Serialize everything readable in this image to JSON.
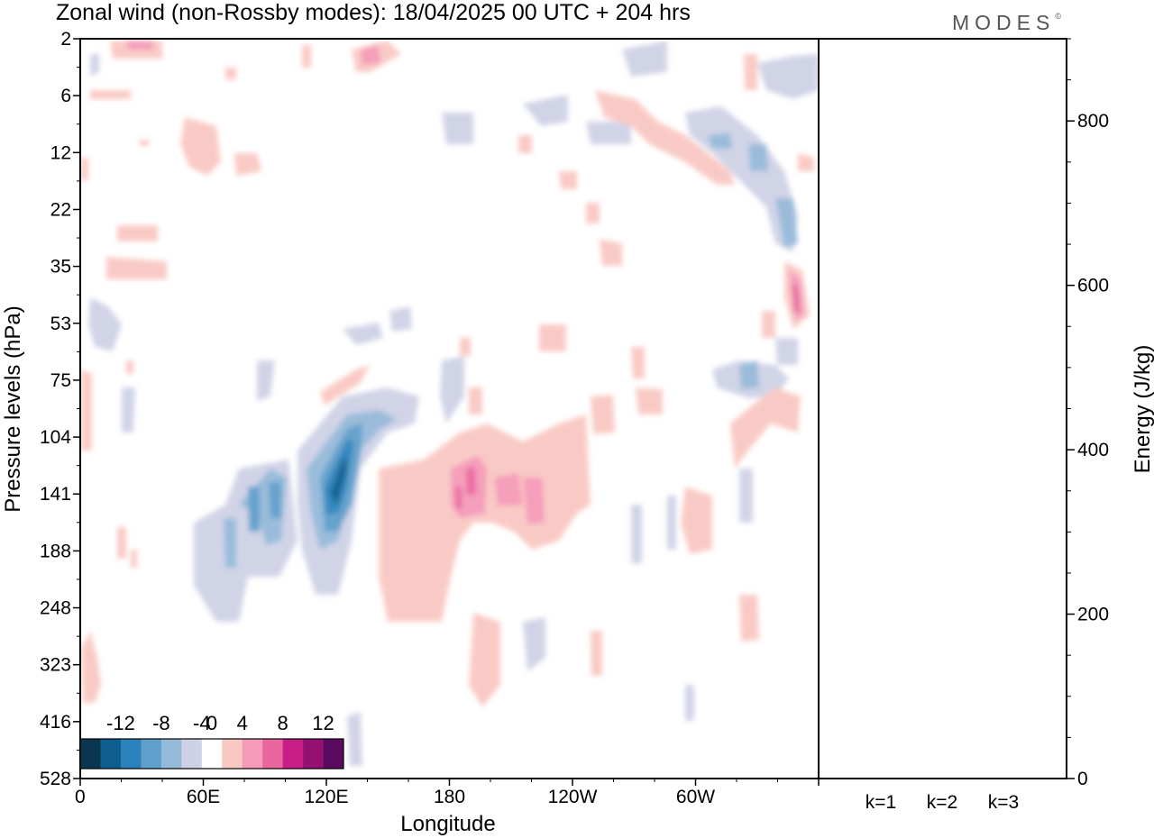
{
  "chart_data": [
    {
      "type": "heatmap",
      "title": "Zonal wind (non-Rossby modes):  18/04/2025  00 UTC  + 204 hrs",
      "xlabel": "Longitude",
      "ylabel": "Pressure levels (hPa)",
      "x_ticks": [
        "0",
        "60E",
        "120E",
        "180",
        "120W",
        "60W"
      ],
      "x_range": [
        0,
        360
      ],
      "y_ticks": [
        "2",
        "6",
        "12",
        "22",
        "35",
        "53",
        "75",
        "104",
        "141",
        "188",
        "248",
        "323",
        "416",
        "528"
      ],
      "y_scale": "pressure levels, top 2 hPa to bottom 528 hPa",
      "colorbar": {
        "tick_labels": [
          "-12",
          "-8",
          "-4",
          "0",
          "4",
          "8",
          "12"
        ],
        "levels": [
          -14,
          -12,
          -10,
          -8,
          -6,
          -4,
          -2,
          2,
          4,
          6,
          8,
          10,
          12,
          14
        ],
        "colors": [
          "#0c3650",
          "#0e5f8f",
          "#2b82bb",
          "#5e9fcb",
          "#95b9d9",
          "#cfd2e6",
          "#ffffff",
          "#f9c8c2",
          "#f59ab8",
          "#e9669f",
          "#c81f87",
          "#960f72",
          "#5b0a62"
        ]
      },
      "regions": [
        {
          "lon": 123,
          "p": 141,
          "value": -12
        },
        {
          "lon": 118,
          "p": 141,
          "value": -8
        },
        {
          "lon": 140,
          "p": 100,
          "value": -4
        },
        {
          "lon": 90,
          "p": 150,
          "value": -4
        },
        {
          "lon": 95,
          "p": 160,
          "value": -2
        },
        {
          "lon": 190,
          "p": 130,
          "value": 6
        },
        {
          "lon": 220,
          "p": 135,
          "value": 4
        },
        {
          "lon": 185,
          "p": 150,
          "value": 3
        },
        {
          "lon": 345,
          "p": 20,
          "value": -4
        },
        {
          "lon": 350,
          "p": 45,
          "value": 6
        }
      ]
    },
    {
      "type": "bar",
      "ylabel": "Energy (J/kg)",
      "categories": [
        "k=1",
        "k=2",
        "k=3"
      ],
      "values": [
        1,
        1,
        0
      ],
      "ylim": [
        0,
        900
      ],
      "y_ticks": [
        0,
        200,
        400,
        600,
        800
      ]
    }
  ],
  "logo_text": "MODES",
  "logo_mark": "©"
}
